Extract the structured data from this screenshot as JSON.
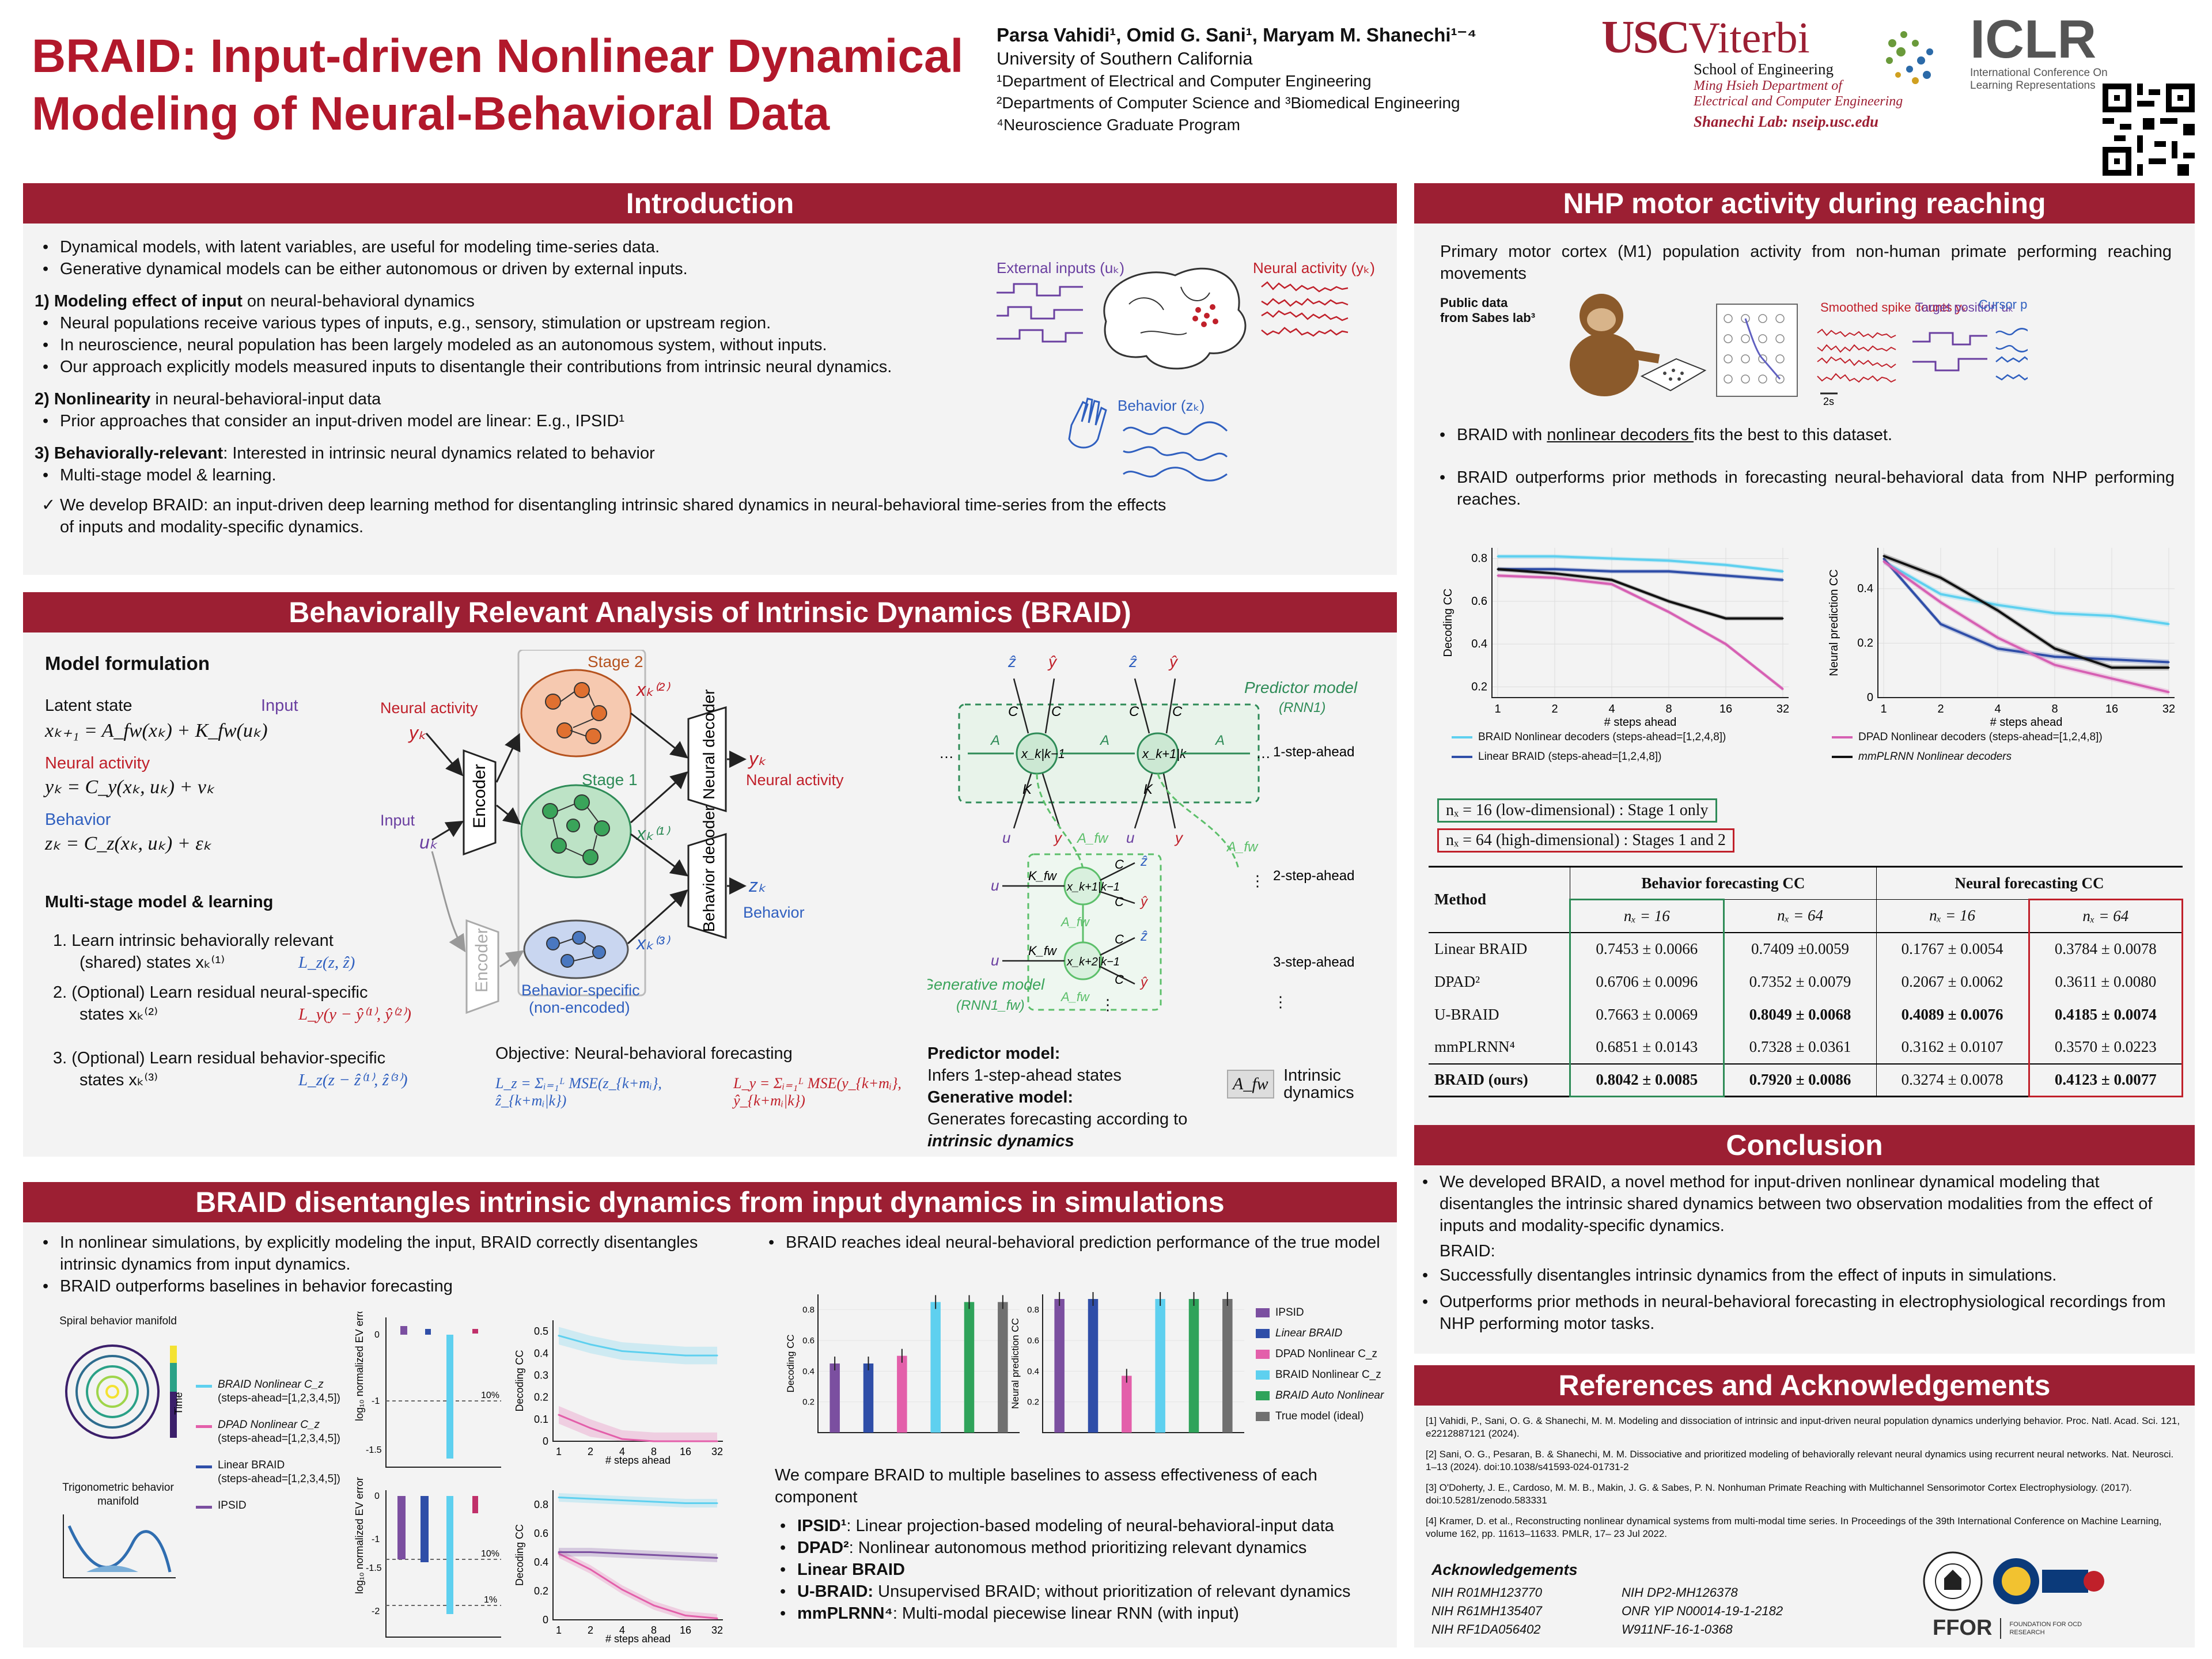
{
  "header": {
    "title_line1": "BRAID: Input-driven Nonlinear Dynamical",
    "title_line2": "Modeling of Neural-Behavioral Data",
    "authors": "Parsa Vahidi¹, Omid G. Sani¹, Maryam M. Shanechi¹⁻⁴",
    "affil1": "University of Southern California",
    "affil2": "¹Department of Electrical and Computer Engineering",
    "affil3": "²Departments of Computer Science and ³Biomedical Engineering",
    "affil4": "⁴Neuroscience Graduate Program",
    "usc": "USC",
    "viterbi": "Viterbi",
    "school": "School of Engineering",
    "dept1": "Ming Hsieh Department of",
    "dept2": "Electrical and Computer Engineering",
    "lab": "Shanechi Lab: nseip.usc.edu",
    "iclr": "ICLR",
    "iclr_sub1": "International Conference On",
    "iclr_sub2": "Learning Representations"
  },
  "intro": {
    "title": "Introduction",
    "b1": "Dynamical models, with latent variables, are useful for modeling time-series data.",
    "b2": "Generative dynamical models can be either autonomous or driven by external inputs.",
    "h1a": "1) Modeling effect of input",
    "h1b": " on neural-behavioral dynamics",
    "b3": "Neural populations receive various types of inputs, e.g., sensory, stimulation or upstream region.",
    "b4": "In neuroscience, neural population has been largely modeled as an autonomous system, without inputs.",
    "b5": "Our approach explicitly models measured inputs to disentangle their contributions from intrinsic neural dynamics.",
    "h2a": "2) Nonlinearity",
    "h2b": " in neural-behavioral-input data",
    "b6": "Prior approaches that consider an input-driven model are linear: E.g., IPSID¹",
    "h3a": "3) Behaviorally-relevant",
    "h3b": ": Interested in intrinsic neural dynamics related to behavior",
    "b7": "Multi-stage model & learning.",
    "check": "We develop BRAID: an input-driven deep learning method for disentangling intrinsic shared dynamics in neural-behavioral time-series from the effects of inputs and modality-specific dynamics.",
    "fig_inputs": "External inputs (uₖ)",
    "fig_neural": "Neural activity (yₖ)",
    "fig_behavior": "Behavior (zₖ)"
  },
  "braid": {
    "title": "Behaviorally Relevant Analysis of Intrinsic Dynamics (BRAID)",
    "model_formulation": "Model formulation",
    "latent_state": "Latent state",
    "input": "Input",
    "eq1": "xₖ₊₁ = A_fw(xₖ) + K_fw(uₖ)",
    "neural_activity": "Neural activity",
    "eq2": "yₖ = C_y(xₖ, uₖ) + vₖ",
    "behavior": "Behavior",
    "eq3": "zₖ = C_z(xₖ, uₖ) + εₖ",
    "multistage": "Multi-stage model & learning",
    "s1": "1.  Learn intrinsic behaviorally relevant",
    "s1b": "(shared) states xₖ⁽¹⁾",
    "s1l": "L_z(z, ẑ)",
    "s2": "2.  (Optional) Learn residual neural-specific",
    "s2b": "states xₖ⁽²⁾",
    "s2l": "L_y(y − ŷ⁽¹⁾, ŷ⁽²⁾)",
    "s3": "3.  (Optional) Learn residual behavior-specific",
    "s3b": "states xₖ⁽³⁾",
    "s3l": "L_z(z − ẑ⁽¹⁾, ẑ⁽³⁾)",
    "d_neural": "Neural activity",
    "d_yk": "yₖ",
    "d_input": "Input",
    "d_uk": "uₖ",
    "d_encoder": "Encoder",
    "d_stage2": "Stage 2",
    "d_stage1": "Stage 1",
    "d_x2": "xₖ⁽²⁾",
    "d_x1": "xₖ⁽¹⁾",
    "d_x3": "xₖ⁽³⁾",
    "d_behspec": "Behavior-specific",
    "d_nonenc": "(non-encoded)",
    "d_ndec": "Neural decoder",
    "d_bdec": "Behavior decoder",
    "d_out_yk": "yₖ",
    "d_out_neural": "Neural activity",
    "d_out_zk": "zₖ",
    "d_out_beh": "Behavior",
    "objective": "Objective: Neural-behavioral forecasting",
    "lz": "L_z = Σᵢ₌₁ᴸ MSE(z_{k+mᵢ}, ẑ_{k+mᵢ|k})",
    "ly": "L_y = Σᵢ₌₁ᴸ MSE(y_{k+mᵢ}, ŷ_{k+mᵢ|k})",
    "pred_model": "Predictor model",
    "rnn1": "(RNN1)",
    "gen_model": "Generative model",
    "rnn1fw": "(RNN1_fw)",
    "step1": "1-step-ahead",
    "step2": "2-step-ahead",
    "step3": "3-step-ahead",
    "pm_title": "Predictor model:",
    "pm_text": "Infers 1-step-ahead states",
    "gm_title": "Generative model:",
    "gm_text": "Generates forecasting according to ",
    "gm_text_b": "intrinsic dynamics",
    "afw": "A_fw",
    "intrinsic": "Intrinsic",
    "dynamics": "dynamics"
  },
  "sim": {
    "title": "BRAID disentangles intrinsic dynamics from input dynamics in simulations",
    "b1": "In nonlinear simulations, by explicitly modeling the input, BRAID correctly disentangles intrinsic dynamics from input dynamics.",
    "b2": "BRAID outperforms baselines in behavior forecasting",
    "spiral": "Spiral behavior manifold",
    "trig": "Trigonometric behavior manifold",
    "time": "Time",
    "leg1": "BRAID Nonlinear C_z",
    "leg1s": "(steps-ahead=[1,2,3,4,5])",
    "leg2": "DPAD Nonlinear C_z",
    "leg2s": "(steps-ahead=[1,2,3,4,5])",
    "leg3": "Linear BRAID",
    "leg3s": "(steps-ahead=[1,2,3,4,5])",
    "leg4": "IPSID",
    "ev_label": "log₁₀ normalized EV error",
    "dec_cc": "Decoding CC",
    "steps": "# steps ahead",
    "pct10": "10%",
    "pct1": "1%",
    "b3": "BRAID reaches ideal neural-behavioral prediction performance of the true model",
    "bar_dec": "Decoding CC",
    "bar_neu": "Neural prediction CC",
    "bl1": "IPSID",
    "bl2": "Linear BRAID",
    "bl3": "DPAD Nonlinear C_z",
    "bl4": "BRAID Nonlinear C_z",
    "bl5": "BRAID Auto Nonlinear",
    "bl6": "True model (ideal)",
    "compare": "We compare BRAID to multiple baselines to assess effectiveness of each component",
    "c1a": "IPSID¹",
    "c1b": ": Linear projection-based modeling of neural-behavioral-input data",
    "c2a": "DPAD²",
    "c2b": ": Nonlinear autonomous method prioritizing relevant dynamics",
    "c3a": "Linear BRAID",
    "c3b": "",
    "c4a": "U-BRAID:",
    "c4b": " Unsupervised BRAID; without prioritization of relevant dynamics",
    "c5a": "mmPLRNN⁴",
    "c5b": ": Multi-modal piecewise linear RNN (with input)"
  },
  "nhp": {
    "title": "NHP motor activity during reaching",
    "intro": "Primary motor cortex (M1) population activity from non-human primate performing reaching movements",
    "public": "Public data",
    "sabes": "from Sabes lab³",
    "spike": "Smoothed spike counts yₖ",
    "target": "Target position uₖ",
    "cursor": "Cursor position and velocity zₖ",
    "scale": "2s",
    "b1a": "BRAID with ",
    "b1b": "nonlinear decoders ",
    "b1c": "fits the best to this dataset.",
    "b2": "BRAID outperforms prior methods in forecasting neural-behavioral data from NHP performing reaches.",
    "dec_cc": "Decoding CC",
    "neu_cc": "Neural prediction CC",
    "steps": "# steps ahead",
    "leg1": "BRAID Nonlinear decoders (steps-ahead=[1,2,4,8])",
    "leg2": "Linear BRAID (steps-ahead=[1,2,4,8])",
    "leg3": "DPAD Nonlinear decoders (steps-ahead=[1,2,4,8])",
    "leg4": "mmPLRNN Nonlinear decoders",
    "box1": "nₓ = 16 (low-dimensional) : Stage 1 only",
    "box2": "nₓ = 64 (high-dimensional) : Stages 1 and 2"
  },
  "table": {
    "method": "Method",
    "beh": "Behavior forecasting CC",
    "neu": "Neural forecasting CC",
    "n16": "nₓ = 16",
    "n64": "nₓ = 64",
    "rows": [
      [
        "Linear BRAID",
        "0.7453 ± 0.0066",
        "0.7409 ±0.0059",
        "0.1767 ± 0.0054",
        "0.3784 ± 0.0078"
      ],
      [
        "DPAD²",
        "0.6706 ± 0.0096",
        "0.7352 ± 0.0079",
        "0.2067 ± 0.0062",
        "0.3611 ± 0.0080"
      ],
      [
        "U-BRAID",
        "0.7663 ± 0.0069",
        "0.8049 ± 0.0068",
        "0.4089 ± 0.0076",
        "0.4185 ± 0.0074"
      ],
      [
        "mmPLRNN⁴",
        "0.6851 ± 0.0143",
        "0.7328 ± 0.0361",
        "0.3162 ± 0.0107",
        "0.3570 ± 0.0223"
      ],
      [
        "BRAID (ours)",
        "0.8042 ± 0.0085",
        "0.7920 ± 0.0086",
        "0.3274 ± 0.0078",
        "0.4123 ± 0.0077"
      ]
    ]
  },
  "conclusion": {
    "title": "Conclusion",
    "b1": "We developed BRAID, a novel method for input-driven nonlinear dynamical modeling that disentangles the intrinsic shared dynamics between two observation modalities from the effect of inputs and modality-specific dynamics.",
    "braid": "BRAID:",
    "b2": "Successfully disentangles intrinsic dynamics from the effect of inputs in simulations.",
    "b3": "Outperforms prior methods in neural-behavioral forecasting in electrophysiological recordings from NHP performing motor tasks."
  },
  "refs": {
    "title": "References and Acknowledgements",
    "r1": "[1] Vahidi, P., Sani, O. G. & Shanechi, M. M. Modeling and dissociation of intrinsic and input-driven neural population dynamics underlying behavior. Proc. Natl. Acad. Sci. 121, e2212887121 (2024).",
    "r2": "[2] Sani, O. G., Pesaran, B. & Shanechi, M. M. Dissociative and prioritized modeling of behaviorally relevant neural dynamics using recurrent neural networks. Nat. Neurosci. 1–13 (2024). doi:10.1038/s41593-024-01731-2",
    "r3": "[3] O'Doherty, J. E., Cardoso, M. M. B., Makin, J. G. & Sabes, P. N. Nonhuman Primate Reaching with Multichannel Sensorimotor Cortex Electrophysiology. (2017). doi:10.5281/zenodo.583331",
    "r4": "[4] Kramer, D. et al., Reconstructing nonlinear dynamical systems from multi-modal time series. In Proceedings of the 39th International Conference on Machine Learning, volume 162, pp. 11613–11633. PMLR, 17– 23 Jul 2022.",
    "ack": "Acknowledgements",
    "g1": "NIH R01MH123770",
    "g2": "NIH DP2-MH126378",
    "g3": "NIH R61MH135407",
    "g4": "ONR YIP N00014-19-1-2182",
    "g5": "NIH RF1DA056402",
    "g6": "W911NF-16-1-0368",
    "ffor": "FFOR",
    "ffor_sub": "FOUNDATION FOR OCD RESEARCH"
  },
  "chart_data": [
    {
      "type": "line",
      "title": "",
      "xlabel": "# steps ahead",
      "ylabel": "Decoding CC",
      "x": [
        1,
        2,
        4,
        8,
        16,
        32
      ],
      "xscale": "log2",
      "ylim": [
        0.15,
        0.85
      ],
      "series": [
        {
          "name": "BRAID Nonlinear decoders",
          "values": [
            0.81,
            0.81,
            0.8,
            0.79,
            0.77,
            0.74
          ],
          "color": "#5ed0ef"
        },
        {
          "name": "Linear BRAID",
          "values": [
            0.75,
            0.75,
            0.74,
            0.74,
            0.72,
            0.7
          ],
          "color": "#2f4ea8"
        },
        {
          "name": "DPAD Nonlinear decoders",
          "values": [
            0.72,
            0.71,
            0.68,
            0.55,
            0.4,
            0.19
          ],
          "color": "#d660b3"
        },
        {
          "name": "mmPLRNN Nonlinear decoders",
          "values": [
            0.75,
            0.73,
            0.7,
            0.6,
            0.52,
            0.52
          ],
          "color": "#111111"
        }
      ]
    },
    {
      "type": "line",
      "title": "",
      "xlabel": "# steps ahead",
      "ylabel": "Neural prediction CC",
      "x": [
        1,
        2,
        4,
        8,
        16,
        32
      ],
      "xscale": "log2",
      "ylim": [
        0,
        0.55
      ],
      "series": [
        {
          "name": "BRAID Nonlinear decoders",
          "values": [
            0.5,
            0.38,
            0.34,
            0.31,
            0.3,
            0.27
          ],
          "color": "#5ed0ef"
        },
        {
          "name": "Linear BRAID",
          "values": [
            0.51,
            0.27,
            0.18,
            0.15,
            0.14,
            0.13
          ],
          "color": "#2f4ea8"
        },
        {
          "name": "DPAD Nonlinear decoders",
          "values": [
            0.5,
            0.35,
            0.22,
            0.12,
            0.07,
            0.02
          ],
          "color": "#d660b3"
        },
        {
          "name": "mmPLRNN Nonlinear decoders",
          "values": [
            0.52,
            0.44,
            0.32,
            0.18,
            0.11,
            0.11
          ],
          "color": "#111111"
        }
      ]
    },
    {
      "type": "line",
      "title": "",
      "xlabel": "# steps ahead",
      "ylabel": "Decoding CC",
      "x": [
        1,
        2,
        4,
        8,
        16,
        32
      ],
      "xscale": "log2",
      "ylim": [
        0,
        0.55
      ],
      "series": [
        {
          "name": "BRAID Nonlinear C_z",
          "values": [
            0.48,
            0.44,
            0.41,
            0.4,
            0.39,
            0.39
          ],
          "color": "#5ed0ef"
        },
        {
          "name": "DPAD Nonlinear C_z",
          "values": [
            0.12,
            0.06,
            0.01,
            0.0,
            0.0,
            0.0
          ],
          "color": "#e35faa"
        }
      ]
    },
    {
      "type": "line",
      "title": "",
      "xlabel": "# steps ahead",
      "ylabel": "Decoding CC",
      "x": [
        1,
        2,
        4,
        8,
        16,
        32
      ],
      "xscale": "log2",
      "ylim": [
        0,
        0.9
      ],
      "series": [
        {
          "name": "BRAID Nonlinear C_z",
          "values": [
            0.85,
            0.84,
            0.83,
            0.82,
            0.81,
            0.81
          ],
          "color": "#5ed0ef"
        },
        {
          "name": "DPAD Nonlinear C_z",
          "values": [
            0.46,
            0.35,
            0.21,
            0.1,
            0.03,
            0.01
          ],
          "color": "#e35faa"
        },
        {
          "name": "IPSID",
          "values": [
            0.47,
            0.47,
            0.46,
            0.45,
            0.44,
            0.43
          ],
          "color": "#7b4fa0"
        }
      ]
    },
    {
      "type": "bar",
      "title": "",
      "ylabel": "Decoding CC",
      "ylim": [
        0,
        0.9
      ],
      "categories": [
        "IPSID",
        "Linear BRAID",
        "DPAD Nonlinear C_z",
        "BRAID Nonlinear C_z",
        "BRAID Auto Nonlinear",
        "True model (ideal)"
      ],
      "values": [
        0.45,
        0.45,
        0.5,
        0.85,
        0.85,
        0.85
      ]
    },
    {
      "type": "bar",
      "title": "",
      "ylabel": "Neural prediction CC",
      "ylim": [
        0,
        0.9
      ],
      "categories": [
        "IPSID",
        "Linear BRAID",
        "DPAD Nonlinear C_z",
        "BRAID Nonlinear C_z",
        "BRAID Auto Nonlinear",
        "True model (ideal)"
      ],
      "values": [
        0.87,
        0.87,
        0.37,
        0.87,
        0.87,
        0.87
      ]
    }
  ],
  "colors": {
    "crimson": "#9c1f33",
    "cyan": "#5ed0ef",
    "navy": "#2f4ea8",
    "pink": "#d660b3",
    "purple": "#7b4fa0",
    "green": "#2e8b57",
    "gray": "#808080"
  }
}
